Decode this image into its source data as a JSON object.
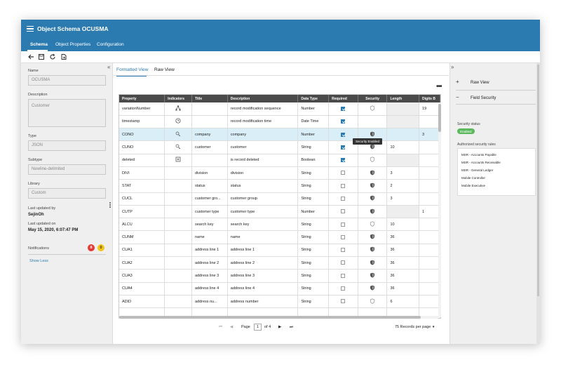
{
  "window": {
    "title": "Object Schema OCUSMA"
  },
  "nav": {
    "tabs": [
      "Schema",
      "Object Properties",
      "Configuration"
    ]
  },
  "toolbar": {
    "icons": [
      "back-arrow-icon",
      "save-icon",
      "refresh-icon",
      "export-icon"
    ]
  },
  "left_panel": {
    "name_label": "Name",
    "name_value": "OCUSMA",
    "description_label": "Description",
    "description_value": "Customer",
    "type_label": "Type",
    "type_value": "JSON",
    "subtype_label": "Subtype",
    "subtype_value": "Newline-delimited",
    "library_label": "Library",
    "library_value": "Custom",
    "updated_by_label": "Last updated by",
    "updated_by_value": "SejinOh",
    "updated_on_label": "Last updated on",
    "updated_on_value": "May 15, 2020, 6:07:47 PM",
    "notifications_label": "Notifications",
    "notif_red": "8",
    "notif_yellow": "0",
    "show_less": "Show Less",
    "collapse_glyph": "«"
  },
  "view_tabs": [
    "Formatted View",
    "Raw View"
  ],
  "more_glyph": "•••",
  "grid": {
    "headers": [
      "Property",
      "Indicators",
      "Title",
      "Description",
      "Data Type",
      "Required",
      "Security",
      "Length",
      "Digits B"
    ],
    "rows": [
      {
        "property": "variationNumber",
        "indicator": "hierarchy",
        "title": "",
        "description": "record modification sequence",
        "type": "Number",
        "required": true,
        "security": "outline",
        "length": "",
        "digits": "19"
      },
      {
        "property": "timestamp",
        "indicator": "clock",
        "title": "",
        "description": "record modification time",
        "type": "Date Time",
        "required": true,
        "security": "none",
        "length": "",
        "digits": ""
      },
      {
        "property": "CONO",
        "indicator": "key",
        "title": "company",
        "description": "company",
        "type": "Number",
        "required": true,
        "security": "shield",
        "length": "",
        "digits": "3",
        "selected": true
      },
      {
        "property": "CUNO",
        "indicator": "key",
        "title": "customer",
        "description": "customer",
        "type": "String",
        "required": true,
        "security": "shield",
        "length": "10",
        "digits": ""
      },
      {
        "property": "deleted",
        "indicator": "plus",
        "title": "",
        "description": "is record deleted",
        "type": "Boolean",
        "required": true,
        "security": "outline",
        "length": "",
        "digits": ""
      },
      {
        "property": "DIVI",
        "indicator": "",
        "title": "division",
        "description": "division",
        "type": "String",
        "required": false,
        "security": "shield",
        "length": "3",
        "digits": ""
      },
      {
        "property": "STAT",
        "indicator": "",
        "title": "status",
        "description": "status",
        "type": "String",
        "required": false,
        "security": "shield",
        "length": "2",
        "digits": ""
      },
      {
        "property": "CUCL",
        "indicator": "",
        "title": "customer gro...",
        "description": "customer group",
        "type": "String",
        "required": false,
        "security": "shield",
        "length": "3",
        "digits": ""
      },
      {
        "property": "CUTP",
        "indicator": "",
        "title": "customer type",
        "description": "customer type",
        "type": "Number",
        "required": false,
        "security": "shield",
        "length": "",
        "digits": "1"
      },
      {
        "property": "ALCU",
        "indicator": "",
        "title": "search key",
        "description": "search key",
        "type": "String",
        "required": false,
        "security": "outline",
        "length": "10",
        "digits": ""
      },
      {
        "property": "CUNM",
        "indicator": "",
        "title": "name",
        "description": "name",
        "type": "String",
        "required": false,
        "security": "shield",
        "length": "36",
        "digits": ""
      },
      {
        "property": "CUA1",
        "indicator": "",
        "title": "address line 1",
        "description": "address line 1",
        "type": "String",
        "required": false,
        "security": "shield",
        "length": "36",
        "digits": ""
      },
      {
        "property": "CUA2",
        "indicator": "",
        "title": "address line 2",
        "description": "address line 2",
        "type": "String",
        "required": false,
        "security": "shield",
        "length": "36",
        "digits": ""
      },
      {
        "property": "CUA3",
        "indicator": "",
        "title": "address line 3",
        "description": "address line 3",
        "type": "String",
        "required": false,
        "security": "shield",
        "length": "36",
        "digits": ""
      },
      {
        "property": "CUA4",
        "indicator": "",
        "title": "address line 4",
        "description": "address line 4",
        "type": "String",
        "required": false,
        "security": "shield",
        "length": "36",
        "digits": ""
      },
      {
        "property": "ADID",
        "indicator": "",
        "title": "address nu...",
        "description": "address number",
        "type": "String",
        "required": false,
        "security": "outline",
        "length": "6",
        "digits": ""
      },
      {
        "property": "",
        "indicator": "",
        "title": "",
        "description": "",
        "type": "",
        "required": false,
        "security": "none",
        "length": "",
        "digits": ""
      }
    ]
  },
  "tooltip": "Security Enabled",
  "pager": {
    "first": "⏮",
    "prev": "◀",
    "page_label": "Page",
    "page_value": "1",
    "of_label": "of 4",
    "next": "▶",
    "last": "⏭",
    "records": "75 Records per page"
  },
  "right_panel": {
    "collapse_glyph": "»",
    "raw_view": "Raw View",
    "field_security": "Field Security",
    "security_status_label": "Security status",
    "security_status_value": "Enabled",
    "rules_label": "Authorized security rules",
    "rules": [
      "MSR - Accounts Payable",
      "MSR - Accounts Receivable",
      "MSR - General Ledger",
      "Mobile Controller",
      "Mobile Executive"
    ]
  },
  "colors": {
    "header_blue": "#2c7bb0",
    "selected_row": "#d9eef6",
    "enabled_green": "#5cb85c",
    "badge_red": "#e53935",
    "badge_yellow": "#f5c518"
  }
}
